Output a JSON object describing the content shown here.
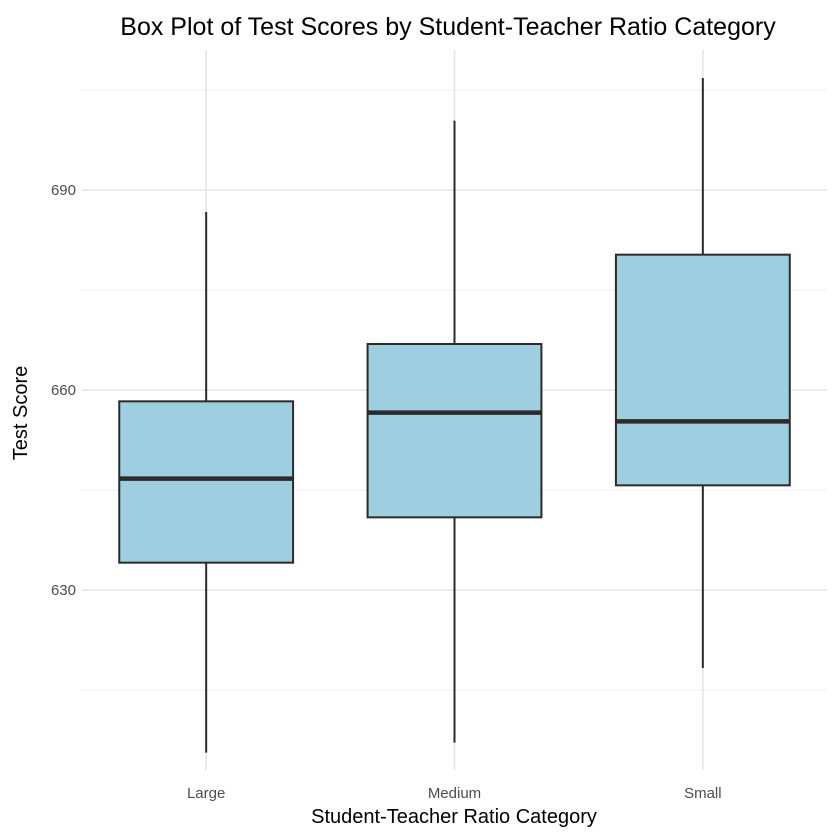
{
  "chart_data": {
    "type": "box",
    "title": "Box Plot of Test Scores by Student-Teacher Ratio Category",
    "xlabel": "Student-Teacher Ratio Category",
    "ylabel": "Test Score",
    "categories": [
      "Large",
      "Medium",
      "Small"
    ],
    "yticks": [
      630,
      660,
      690
    ],
    "ylim": [
      603,
      711
    ],
    "grid": true,
    "colors": {
      "box_fill": "#9ecfe1",
      "box_stroke": "#2b2b2b"
    },
    "boxes": [
      {
        "category": "Large",
        "min": 605.6,
        "q1": 634.1,
        "median": 646.7,
        "q3": 658.3,
        "max": 686.7
      },
      {
        "category": "Medium",
        "min": 607.1,
        "q1": 640.9,
        "median": 656.6,
        "q3": 666.9,
        "max": 700.4
      },
      {
        "category": "Small",
        "min": 618.3,
        "q1": 645.7,
        "median": 655.3,
        "q3": 680.3,
        "max": 706.8
      }
    ]
  }
}
